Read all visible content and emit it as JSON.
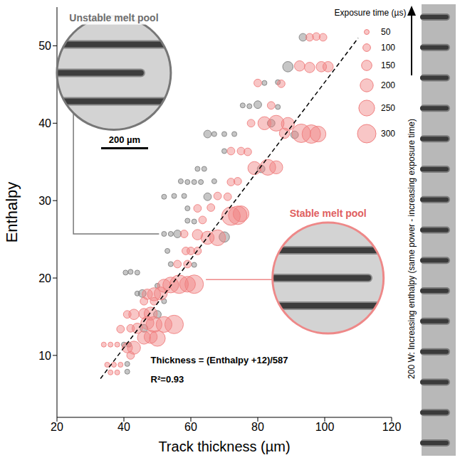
{
  "chart_data": {
    "type": "scatter",
    "x_label": "Track thickness (µm)",
    "y_label": "Enthalpy",
    "xlim": [
      20,
      120
    ],
    "xticks": [
      20,
      40,
      60,
      80,
      100,
      120
    ],
    "ylim": [
      2,
      55
    ],
    "yticks": [
      10,
      20,
      30,
      40,
      50
    ],
    "grid": false,
    "series": [
      {
        "name": "Unstable melt pool",
        "color": "#808080",
        "marker": "circle",
        "x": [
          93.5,
          89,
          82,
          86,
          75.5,
          77.5,
          80,
          86,
          84,
          65,
          67,
          70,
          73,
          91,
          70,
          62,
          64,
          81,
          57,
          59,
          61,
          63,
          67,
          52,
          55,
          58,
          65,
          59,
          59,
          61,
          52,
          54,
          56,
          70,
          53,
          54,
          61,
          40.5,
          42,
          44,
          50,
          44,
          45.5,
          52,
          50,
          46,
          40,
          41.5,
          41,
          41
        ],
        "y": [
          51.1,
          47.3,
          45.2,
          45.3,
          42.3,
          42.2,
          42.4,
          42.1,
          40,
          38.6,
          38.6,
          38.6,
          38.6,
          38.5,
          36.4,
          34.1,
          34.1,
          34.1,
          32.5,
          32.4,
          32.4,
          32.4,
          32.5,
          30.5,
          30.6,
          30.6,
          30.5,
          29,
          27.4,
          27.3,
          25.7,
          25.7,
          25.7,
          25.3,
          23.5,
          21.8,
          21.7,
          20.7,
          20.8,
          20.7,
          19,
          18,
          18,
          17,
          15.3,
          13.5,
          11.4,
          11.4,
          8.9,
          7.9
        ],
        "exposure_time": [
          100,
          150,
          50,
          50,
          50,
          50,
          100,
          50,
          100,
          100,
          50,
          50,
          50,
          100,
          50,
          50,
          50,
          100,
          50,
          50,
          50,
          50,
          50,
          50,
          50,
          50,
          100,
          50,
          50,
          50,
          50,
          50,
          100,
          150,
          50,
          50,
          50,
          50,
          50,
          50,
          50,
          50,
          100,
          50,
          100,
          100,
          50,
          50,
          50,
          50
        ]
      },
      {
        "name": "Stable melt pool",
        "color": "#f08080",
        "marker": "circle",
        "x": [
          95.5,
          97.5,
          99.5,
          92.5,
          95.5,
          99,
          101,
          80,
          87,
          84,
          78,
          82,
          85.5,
          89,
          88,
          93,
          96,
          98,
          72,
          75,
          77,
          79,
          83,
          85.5,
          72,
          74,
          68,
          71,
          62,
          66,
          72,
          74,
          75,
          63.5,
          58,
          62,
          65,
          68,
          58.5,
          60,
          62,
          56,
          59,
          52,
          54,
          56.5,
          59,
          61,
          47,
          49,
          51,
          46,
          49,
          41,
          43,
          46,
          48,
          47,
          49,
          52,
          55,
          39,
          42,
          44,
          46,
          48,
          50,
          34,
          36,
          38,
          41,
          43,
          42,
          35,
          37,
          39,
          36,
          38
        ],
        "y": [
          51.1,
          51.2,
          51.1,
          47.4,
          47.2,
          47.3,
          47.3,
          45.2,
          45.1,
          42.3,
          40,
          40,
          40,
          39.9,
          38.7,
          38.7,
          38.6,
          38.6,
          36.4,
          36.4,
          36.3,
          34.2,
          34.3,
          34.3,
          32.4,
          32.5,
          30.6,
          30.5,
          29,
          29.1,
          28,
          28.1,
          28.3,
          27.5,
          25.7,
          25.6,
          25.2,
          25.2,
          23.5,
          23.5,
          23.5,
          21.8,
          21.8,
          19,
          19.1,
          19.2,
          19.2,
          19.2,
          17.9,
          17.9,
          18,
          17,
          17,
          15.3,
          15.3,
          15.4,
          15.4,
          14.2,
          14,
          14,
          14,
          13.4,
          13.5,
          13.5,
          12.3,
          12.4,
          12.2,
          11.4,
          11.4,
          11.4,
          11,
          11,
          10,
          8.8,
          8.8,
          8.8,
          7.8,
          7.8
        ],
        "exposure_time": [
          100,
          100,
          100,
          150,
          150,
          150,
          150,
          100,
          100,
          100,
          100,
          200,
          250,
          200,
          150,
          300,
          300,
          250,
          100,
          100,
          100,
          200,
          250,
          200,
          100,
          100,
          100,
          100,
          100,
          100,
          300,
          300,
          250,
          100,
          100,
          150,
          200,
          250,
          100,
          100,
          100,
          100,
          100,
          200,
          250,
          300,
          250,
          300,
          150,
          200,
          200,
          100,
          100,
          100,
          150,
          150,
          200,
          200,
          250,
          250,
          300,
          100,
          100,
          150,
          200,
          200,
          250,
          50,
          50,
          50,
          150,
          200,
          100,
          50,
          50,
          50,
          50,
          50
        ]
      }
    ],
    "fit_line": {
      "x": [
        33,
        110
      ],
      "y": [
        7,
        51
      ],
      "line_style": "dashed",
      "color": "#000000"
    },
    "size_legend": {
      "title": "Exposure time (µs)",
      "values": [
        50,
        100,
        150,
        200,
        250,
        300
      ]
    },
    "annotations": [
      "Thickness = (Enthalpy +12)/587",
      "R²=0.93",
      "200 µm",
      "200 W: Increasing enthalpy (same power - increasing exposure time)"
    ],
    "legend": "top-right"
  }
}
